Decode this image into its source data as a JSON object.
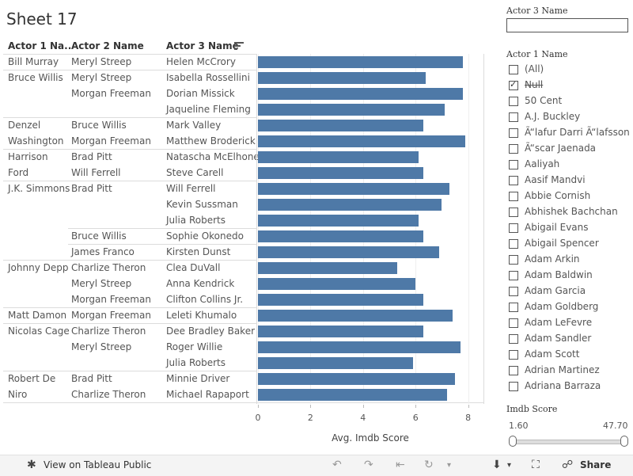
{
  "sheet_title": "Sheet 17",
  "headers": {
    "actor1": "Actor 1 Na..",
    "actor2": "Actor 2 Name",
    "actor3": "Actor 3 Name"
  },
  "rows": [
    {
      "a1": "Bill Murray",
      "a2": "Meryl Streep",
      "a3": "Helen McCrory",
      "score": 7.8
    },
    {
      "a1": "Bruce Willis",
      "a2": "Meryl Streep",
      "a3": "Isabella Rossellini",
      "score": 6.4
    },
    {
      "a1": "",
      "a2": "Morgan Freeman",
      "a3": "Dorian Missick",
      "score": 7.8
    },
    {
      "a1": "",
      "a2": "",
      "a3": "Jaqueline Fleming",
      "score": 7.1
    },
    {
      "a1": "Denzel",
      "a2": "Bruce Willis",
      "a3": "Mark Valley",
      "score": 6.3
    },
    {
      "a1": "Washington",
      "a2": "Morgan Freeman",
      "a3": "Matthew Broderick",
      "score": 7.9
    },
    {
      "a1": "Harrison",
      "a2": "Brad Pitt",
      "a3": "Natascha McElhone",
      "score": 6.1
    },
    {
      "a1": "Ford",
      "a2": "Will Ferrell",
      "a3": "Steve Carell",
      "score": 6.3
    },
    {
      "a1": "J.K. Simmons",
      "a2": "Brad Pitt",
      "a3": "Will Ferrell",
      "score": 7.3
    },
    {
      "a1": "",
      "a2": "",
      "a3": "Kevin Sussman",
      "score": 7.0
    },
    {
      "a1": "",
      "a2": "",
      "a3": "Julia Roberts",
      "score": 6.1
    },
    {
      "a1": "",
      "a2": "Bruce Willis",
      "a3": "Sophie Okonedo",
      "score": 6.3
    },
    {
      "a1": "",
      "a2": "James Franco",
      "a3": "Kirsten Dunst",
      "score": 6.9
    },
    {
      "a1": "Johnny Depp",
      "a2": "Charlize Theron",
      "a3": "Clea DuVall",
      "score": 5.3
    },
    {
      "a1": "",
      "a2": "Meryl Streep",
      "a3": "Anna Kendrick",
      "score": 6.0
    },
    {
      "a1": "",
      "a2": "Morgan Freeman",
      "a3": "Clifton Collins Jr.",
      "score": 6.3
    },
    {
      "a1": "Matt Damon",
      "a2": "Morgan Freeman",
      "a3": "Leleti Khumalo",
      "score": 7.4
    },
    {
      "a1": "Nicolas Cage",
      "a2": "Charlize Theron",
      "a3": "Dee Bradley Baker",
      "score": 6.3
    },
    {
      "a1": "",
      "a2": "Meryl Streep",
      "a3": "Roger Willie",
      "score": 7.7
    },
    {
      "a1": "",
      "a2": "",
      "a3": "Julia Roberts",
      "score": 5.9
    },
    {
      "a1": "Robert De",
      "a2": "Brad Pitt",
      "a3": "Minnie Driver",
      "score": 7.5
    },
    {
      "a1": "Niro",
      "a2": "Charlize Theron",
      "a3": "Michael Rapaport",
      "score": 7.2
    }
  ],
  "group_separators_after": [
    0,
    3,
    5,
    7,
    10,
    11,
    12,
    15,
    16,
    19
  ],
  "chart_data": {
    "type": "bar",
    "orientation": "horizontal",
    "xlabel": "Avg. Imdb Score",
    "xlim": [
      0,
      8.5
    ],
    "xticks": [
      0,
      2,
      4,
      6,
      8
    ],
    "grid": true,
    "color": "#4e79a7",
    "categories": [
      "Helen McCrory",
      "Isabella Rossellini",
      "Dorian Missick",
      "Jaqueline Fleming",
      "Mark Valley",
      "Matthew Broderick",
      "Natascha McElhone",
      "Steve Carell",
      "Will Ferrell",
      "Kevin Sussman",
      "Julia Roberts",
      "Sophie Okonedo",
      "Kirsten Dunst",
      "Clea DuVall",
      "Anna Kendrick",
      "Clifton Collins Jr.",
      "Leleti Khumalo",
      "Dee Bradley Baker",
      "Roger Willie",
      "Julia Roberts",
      "Minnie Driver",
      "Michael Rapaport"
    ],
    "values": [
      7.8,
      6.4,
      7.8,
      7.1,
      6.3,
      7.9,
      6.1,
      6.3,
      7.3,
      7.0,
      6.1,
      6.3,
      6.9,
      5.3,
      6.0,
      6.3,
      7.4,
      6.3,
      7.7,
      5.9,
      7.5,
      7.2
    ]
  },
  "filters": {
    "actor3": {
      "title": "Actor 3 Name",
      "value": ""
    },
    "actor1": {
      "title": "Actor 1 Name",
      "options": [
        {
          "label": "(All)",
          "checked": false,
          "strike": false
        },
        {
          "label": "Null",
          "checked": true,
          "strike": true
        },
        {
          "label": "50 Cent",
          "checked": false,
          "strike": false
        },
        {
          "label": "A.J. Buckley",
          "checked": false,
          "strike": false
        },
        {
          "label": "Ã“lafur Darri Ã“lafsson",
          "checked": false,
          "strike": false
        },
        {
          "label": "Ã“scar Jaenada",
          "checked": false,
          "strike": false
        },
        {
          "label": "Aaliyah",
          "checked": false,
          "strike": false
        },
        {
          "label": "Aasif Mandvi",
          "checked": false,
          "strike": false
        },
        {
          "label": "Abbie Cornish",
          "checked": false,
          "strike": false
        },
        {
          "label": "Abhishek Bachchan",
          "checked": false,
          "strike": false
        },
        {
          "label": "Abigail Evans",
          "checked": false,
          "strike": false
        },
        {
          "label": "Abigail Spencer",
          "checked": false,
          "strike": false
        },
        {
          "label": "Adam Arkin",
          "checked": false,
          "strike": false
        },
        {
          "label": "Adam Baldwin",
          "checked": false,
          "strike": false
        },
        {
          "label": "Adam Garcia",
          "checked": false,
          "strike": false
        },
        {
          "label": "Adam Goldberg",
          "checked": false,
          "strike": false
        },
        {
          "label": "Adam LeFevre",
          "checked": false,
          "strike": false
        },
        {
          "label": "Adam Sandler",
          "checked": false,
          "strike": false
        },
        {
          "label": "Adam Scott",
          "checked": false,
          "strike": false
        },
        {
          "label": "Adrian Martinez",
          "checked": false,
          "strike": false
        },
        {
          "label": "Adriana Barraza",
          "checked": false,
          "strike": false
        }
      ]
    },
    "imdb": {
      "title": "Imdb Score",
      "min_label": "1.60",
      "max_label": "47.70"
    }
  },
  "footer": {
    "view_label": "View on Tableau Public",
    "share_label": "Share"
  }
}
